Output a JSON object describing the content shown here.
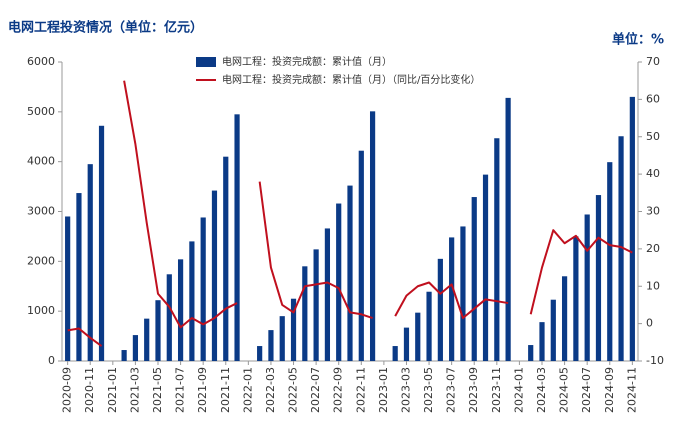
{
  "chart_data": {
    "type": "bar+line",
    "title": "电网工程投资情况（单位：亿元）",
    "y2_label": "单位：%",
    "categories": [
      "2020-09",
      null,
      "2020-11",
      null,
      "2021-01",
      null,
      "2021-03",
      null,
      "2021-05",
      null,
      "2021-07",
      null,
      "2021-09",
      null,
      "2021-11",
      null,
      "2022-01",
      null,
      "2022-03",
      null,
      "2022-05",
      null,
      "2022-07",
      null,
      "2022-09",
      null,
      "2022-11",
      null,
      "2023-01",
      null,
      "2023-03",
      null,
      "2023-05",
      null,
      "2023-07",
      null,
      "2023-09",
      null,
      "2023-11",
      null,
      "2024-01",
      null,
      "2024-03",
      null,
      "2024-05",
      null,
      "2024-07",
      null,
      "2024-09",
      null,
      "2024-11"
    ],
    "series": [
      {
        "name": "电网工程：投资完成额：累计值（月）",
        "type": "bar",
        "color": "#0b3a86",
        "values": [
          2900,
          3370,
          3950,
          4720,
          null,
          220,
          520,
          850,
          1220,
          1740,
          2040,
          2400,
          2880,
          3420,
          4100,
          4950,
          null,
          300,
          620,
          900,
          1250,
          1900,
          2240,
          2660,
          3160,
          3520,
          4220,
          5010,
          null,
          300,
          670,
          970,
          1390,
          2050,
          2480,
          2700,
          3290,
          3740,
          4470,
          5280,
          null,
          320,
          780,
          1230,
          1700,
          2500,
          2940,
          3330,
          3990,
          4510,
          5300
        ]
      },
      {
        "name": "电网工程：投资完成额：累计值（月）（同比/百分比变化）",
        "type": "line",
        "color": "#c0101e",
        "axis": "y2",
        "values": [
          -1.8,
          -1.3,
          -3.8,
          -6,
          null,
          65,
          48,
          27,
          8,
          4.5,
          -1,
          1.5,
          -0.2,
          1.5,
          4,
          5.5,
          null,
          38,
          15,
          5,
          3,
          10,
          10.5,
          11,
          9.5,
          3,
          2.5,
          1.5,
          null,
          2,
          7.5,
          10,
          11,
          8,
          10.5,
          1.5,
          4,
          6.5,
          6,
          5.5,
          null,
          2.5,
          15,
          25,
          21.5,
          23.5,
          19.5,
          23,
          21,
          20.5,
          19
        ]
      }
    ],
    "ylim": [
      0,
      6000
    ],
    "yticks": [
      0,
      1000,
      2000,
      3000,
      4000,
      5000,
      6000
    ],
    "y2lim": [
      -10,
      70
    ],
    "y2ticks": [
      -10,
      0,
      10,
      20,
      30,
      40,
      50,
      60,
      70
    ]
  }
}
